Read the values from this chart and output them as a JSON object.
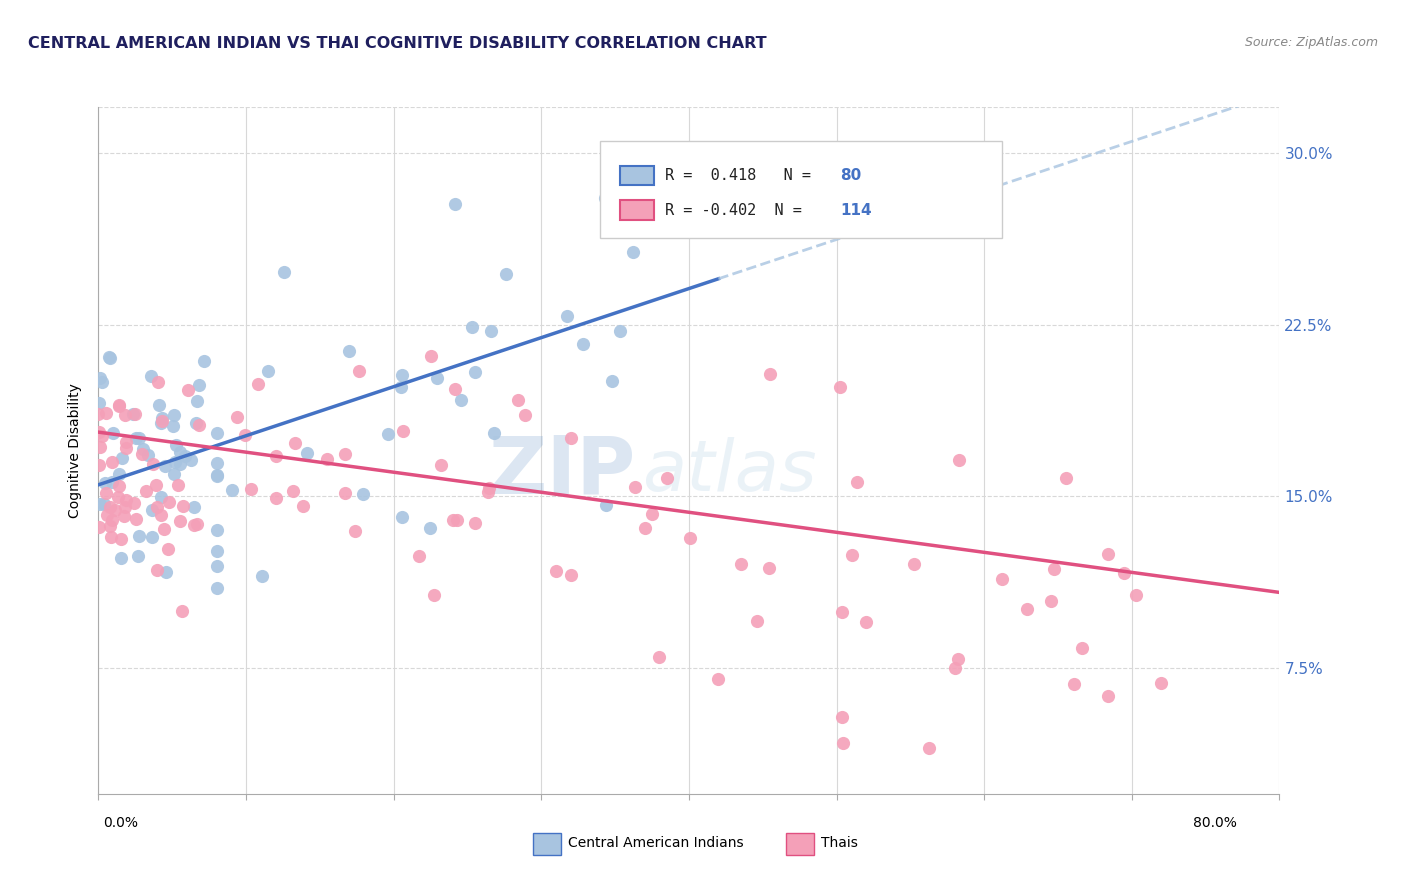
{
  "title": "CENTRAL AMERICAN INDIAN VS THAI COGNITIVE DISABILITY CORRELATION CHART",
  "source": "Source: ZipAtlas.com",
  "ylabel": "Cognitive Disability",
  "yticks": [
    0.075,
    0.15,
    0.225,
    0.3
  ],
  "ytick_labels": [
    "7.5%",
    "15.0%",
    "22.5%",
    "30.0%"
  ],
  "xmin": 0.0,
  "xmax": 0.8,
  "ymin": 0.02,
  "ymax": 0.32,
  "R_blue": 0.418,
  "N_blue": 80,
  "R_pink": -0.402,
  "N_pink": 114,
  "legend_label_blue": "Central American Indians",
  "legend_label_pink": "Thais",
  "scatter_color_blue": "#a8c4e0",
  "scatter_color_pink": "#f4a0b8",
  "line_color_blue": "#4472c4",
  "line_color_pink": "#e05080",
  "line_color_dashed": "#a8c4e0",
  "watermark_zip": "ZIP",
  "watermark_atlas": "atlas",
  "title_color": "#1f1f5e",
  "source_color": "#888888",
  "ytick_color": "#4472c4",
  "background_color": "#ffffff",
  "grid_color": "#d8d8d8",
  "blue_line_start_x": 0.0,
  "blue_line_end_x": 0.42,
  "blue_line_start_y": 0.155,
  "blue_line_end_y": 0.245,
  "pink_line_start_x": 0.0,
  "pink_line_end_x": 0.8,
  "pink_line_start_y": 0.178,
  "pink_line_end_y": 0.108
}
